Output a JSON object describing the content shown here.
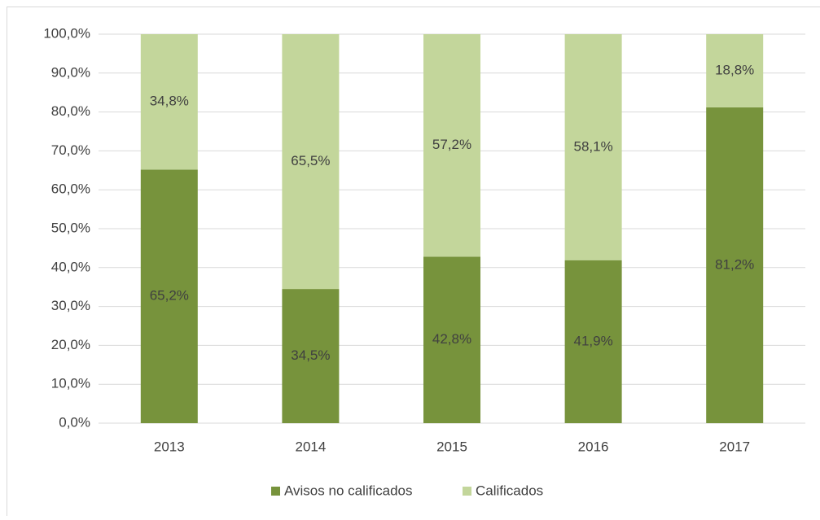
{
  "chart_data": {
    "type": "stacked_bar",
    "categories": [
      "2013",
      "2014",
      "2015",
      "2016",
      "2017"
    ],
    "series": [
      {
        "name": "Avisos no calificados",
        "color": "#77933c",
        "values": [
          65.2,
          34.5,
          42.8,
          41.9,
          81.2
        ],
        "value_labels": [
          "65,2%",
          "34,5%",
          "42,8%",
          "41,9%",
          "81,2%"
        ]
      },
      {
        "name": "Calificados",
        "color": "#c3d69b",
        "values": [
          34.8,
          65.5,
          57.2,
          58.1,
          18.8
        ],
        "value_labels": [
          "34,8%",
          "65,5%",
          "57,2%",
          "58,1%",
          "18,8%"
        ]
      }
    ],
    "ylim": [
      0,
      100
    ],
    "yticks": [
      {
        "value": 0,
        "label": "0,0%"
      },
      {
        "value": 10,
        "label": "10,0%"
      },
      {
        "value": 20,
        "label": "20,0%"
      },
      {
        "value": 30,
        "label": "30,0%"
      },
      {
        "value": 40,
        "label": "40,0%"
      },
      {
        "value": 50,
        "label": "50,0%"
      },
      {
        "value": 60,
        "label": "60,0%"
      },
      {
        "value": 70,
        "label": "70,0%"
      },
      {
        "value": 80,
        "label": "80,0%"
      },
      {
        "value": 90,
        "label": "90,0%"
      },
      {
        "value": 100,
        "label": "100,0%"
      }
    ],
    "grid": true,
    "legend": "bottom"
  }
}
